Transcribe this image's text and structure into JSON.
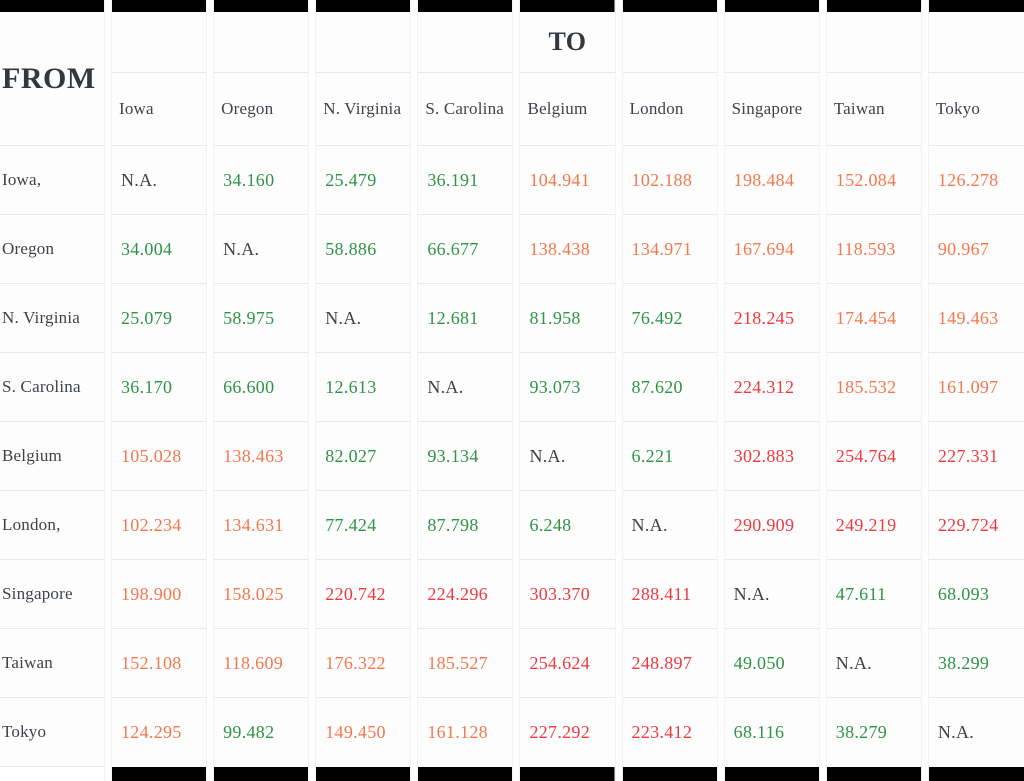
{
  "header": {
    "from_label": "FROM",
    "to_label": "TO",
    "to_column_index": 4
  },
  "colors": {
    "green": "#2e9447",
    "orange": "#f4784e",
    "red": "#ee3a3f",
    "na_text": "#3f4347",
    "label_text": "#3f4347",
    "header_text": "#33383c",
    "grid_line": "#e9e9e9",
    "noise_base": "#42503a"
  },
  "chart_data": {
    "type": "table",
    "columns": [
      "Iowa",
      "Oregon",
      "N. Virginia",
      "S. Carolina",
      "Belgium",
      "London",
      "Singapore",
      "Taiwan",
      "Tokyo"
    ],
    "rows": [
      {
        "label": "Iowa,",
        "values": [
          "N.A.",
          "34.160",
          "25.479",
          "36.191",
          "104.941",
          "102.188",
          "198.484",
          "152.084",
          "126.278"
        ],
        "colors": [
          "na",
          "green",
          "green",
          "green",
          "orange",
          "orange",
          "orange",
          "orange",
          "orange"
        ]
      },
      {
        "label": "Oregon",
        "values": [
          "34.004",
          "N.A.",
          "58.886",
          "66.677",
          "138.438",
          "134.971",
          "167.694",
          "118.593",
          "90.967"
        ],
        "colors": [
          "green",
          "na",
          "green",
          "green",
          "orange",
          "orange",
          "orange",
          "orange",
          "orange"
        ]
      },
      {
        "label": "N. Virginia",
        "values": [
          "25.079",
          "58.975",
          "N.A.",
          "12.681",
          "81.958",
          "76.492",
          "218.245",
          "174.454",
          "149.463"
        ],
        "colors": [
          "green",
          "green",
          "na",
          "green",
          "green",
          "green",
          "red",
          "orange",
          "orange"
        ]
      },
      {
        "label": "S. Carolina",
        "values": [
          "36.170",
          "66.600",
          "12.613",
          "N.A.",
          "93.073",
          "87.620",
          "224.312",
          "185.532",
          "161.097"
        ],
        "colors": [
          "green",
          "green",
          "green",
          "na",
          "green",
          "green",
          "red",
          "orange",
          "orange"
        ]
      },
      {
        "label": "Belgium",
        "values": [
          "105.028",
          "138.463",
          "82.027",
          "93.134",
          "N.A.",
          "6.221",
          "302.883",
          "254.764",
          "227.331"
        ],
        "colors": [
          "orange",
          "orange",
          "green",
          "green",
          "na",
          "green",
          "red",
          "red",
          "red"
        ]
      },
      {
        "label": "London,",
        "values": [
          "102.234",
          "134.631",
          "77.424",
          "87.798",
          "6.248",
          "N.A.",
          "290.909",
          "249.219",
          "229.724"
        ],
        "colors": [
          "orange",
          "orange",
          "green",
          "green",
          "green",
          "na",
          "red",
          "red",
          "red"
        ]
      },
      {
        "label": "Singapore",
        "values": [
          "198.900",
          "158.025",
          "220.742",
          "224.296",
          "303.370",
          "288.411",
          "N.A.",
          "47.611",
          "68.093"
        ],
        "colors": [
          "orange",
          "orange",
          "red",
          "red",
          "red",
          "red",
          "na",
          "green",
          "green"
        ]
      },
      {
        "label": "Taiwan",
        "values": [
          "152.108",
          "118.609",
          "176.322",
          "185.527",
          "254.624",
          "248.897",
          "49.050",
          "N.A.",
          "38.299"
        ],
        "colors": [
          "orange",
          "orange",
          "orange",
          "orange",
          "red",
          "red",
          "green",
          "na",
          "green"
        ]
      },
      {
        "label": "Tokyo",
        "values": [
          "124.295",
          "99.482",
          "149.450",
          "161.128",
          "227.292",
          "223.412",
          "68.116",
          "38.279",
          "N.A."
        ],
        "colors": [
          "orange",
          "green",
          "orange",
          "orange",
          "red",
          "red",
          "green",
          "green",
          "na"
        ]
      }
    ]
  }
}
